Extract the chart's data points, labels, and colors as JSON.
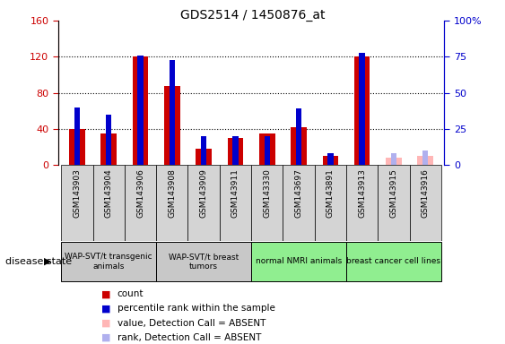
{
  "title": "GDS2514 / 1450876_at",
  "samples": [
    "GSM143903",
    "GSM143904",
    "GSM143906",
    "GSM143908",
    "GSM143909",
    "GSM143911",
    "GSM143330",
    "GSM143697",
    "GSM143891",
    "GSM143913",
    "GSM143915",
    "GSM143916"
  ],
  "count": [
    40,
    35,
    120,
    88,
    18,
    30,
    35,
    42,
    10,
    120,
    0,
    0
  ],
  "percentile": [
    40,
    35,
    76,
    73,
    20,
    20,
    20,
    39,
    8,
    78,
    0,
    0
  ],
  "absent_value": [
    0,
    0,
    0,
    0,
    0,
    0,
    0,
    0,
    0,
    0,
    8,
    10
  ],
  "absent_rank": [
    0,
    0,
    0,
    0,
    0,
    0,
    0,
    0,
    0,
    0,
    8,
    10
  ],
  "is_absent": [
    false,
    false,
    false,
    false,
    false,
    false,
    false,
    false,
    false,
    false,
    true,
    true
  ],
  "groups": [
    {
      "label": "WAP-SVT/t transgenic\nanimals",
      "start": 0,
      "end": 2,
      "color": "#c8c8c8"
    },
    {
      "label": "WAP-SVT/t breast\ntumors",
      "start": 3,
      "end": 5,
      "color": "#c8c8c8"
    },
    {
      "label": "normal NMRI animals",
      "start": 6,
      "end": 8,
      "color": "#90ee90"
    },
    {
      "label": "breast cancer cell lines",
      "start": 9,
      "end": 11,
      "color": "#90ee90"
    }
  ],
  "ylim_left": [
    0,
    160
  ],
  "ylim_right": [
    0,
    100
  ],
  "yticks_left": [
    0,
    40,
    80,
    120,
    160
  ],
  "yticks_right": [
    0,
    25,
    50,
    75,
    100
  ],
  "count_color": "#cc0000",
  "percentile_color": "#0000cc",
  "absent_value_color": "#ffb6b6",
  "absent_rank_color": "#b0b0ee",
  "background_color": "#ffffff",
  "legend_entries": [
    "count",
    "percentile rank within the sample",
    "value, Detection Call = ABSENT",
    "rank, Detection Call = ABSENT"
  ]
}
